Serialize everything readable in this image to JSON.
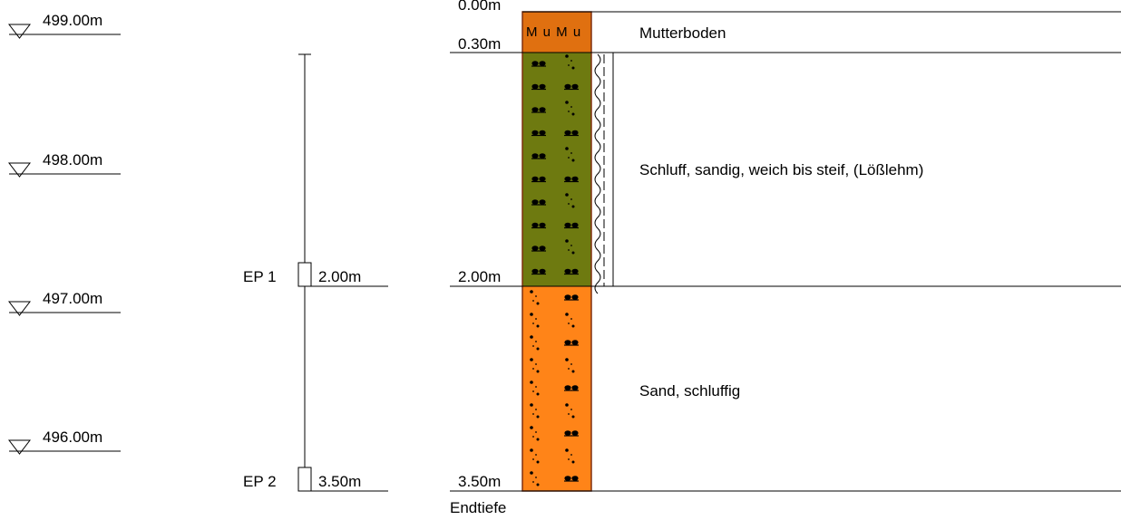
{
  "elevation_markers": [
    "499.00m",
    "498.00m",
    "497.00m",
    "496.00m"
  ],
  "samples": [
    {
      "label": "EP 1",
      "depth": "2.00m",
      "depth_value": 2.0
    },
    {
      "label": "EP 2",
      "depth": "3.50m",
      "depth_value": 3.5
    }
  ],
  "depth_labels": [
    "0.00m",
    "0.30m",
    "2.00m",
    "3.50m"
  ],
  "end_label": "Endtiefe",
  "layers": [
    {
      "top": 0.0,
      "bottom": 0.3,
      "code": "M u M u",
      "description": "Mutterboden",
      "color": "#e07010",
      "pattern": "none"
    },
    {
      "top": 0.3,
      "bottom": 2.0,
      "code": "",
      "description": "Schluff, sandig, weich bis steif, (Lößlehm)",
      "color": "#6e7a10",
      "pattern": "silt-sand"
    },
    {
      "top": 2.0,
      "bottom": 3.5,
      "code": "",
      "description": "Sand, schluffig",
      "color": "#ff8418",
      "pattern": "sand-silt"
    }
  ],
  "colors": {
    "line": "#000000",
    "column_border": "#803010"
  },
  "consistency_symbol": "wavy-line-with-dashed-line"
}
